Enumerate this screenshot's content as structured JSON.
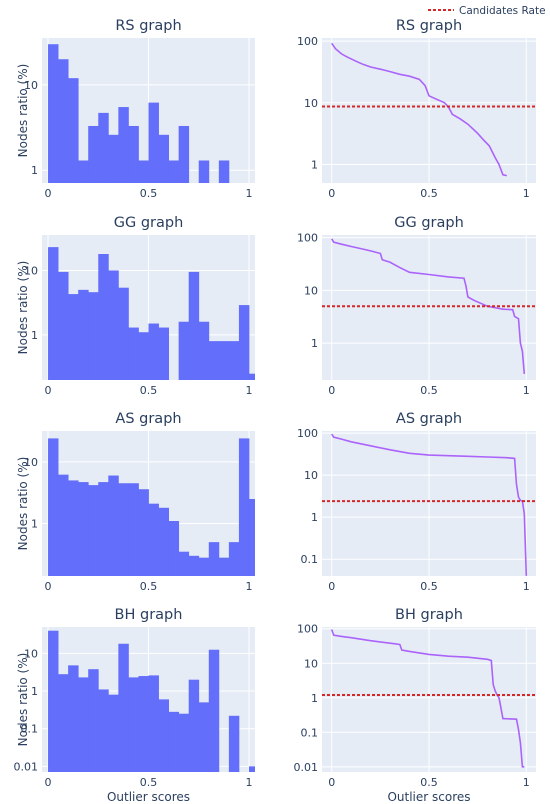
{
  "colors": {
    "plot_bg": "#e5ecf6",
    "grid": "#ffffff",
    "bar": "#636efa",
    "curve": "#ab63fa",
    "rate": "#d62728",
    "text": "#2a3f5f"
  },
  "legend": {
    "label": "Candidates Rate",
    "placement": "top-right"
  },
  "common": {
    "ylabel": "Nodes ratio (%)",
    "xlabel": "Outlier scores"
  },
  "chart_data": [
    {
      "id": "rs-hist",
      "type": "bar",
      "title": "RS graph",
      "ylabel": "Nodes ratio (%)",
      "xlabel": "",
      "xlim": [
        -0.03,
        1.03
      ],
      "y_scale": "log",
      "ylim_log10": [
        -0.15,
        1.55
      ],
      "xticks": [
        {
          "v": 0,
          "t": "0"
        },
        {
          "v": 0.5,
          "t": "0.5"
        },
        {
          "v": 1,
          "t": "1"
        }
      ],
      "yticks": [
        {
          "v": 1,
          "t": "1"
        },
        {
          "v": 10,
          "t": "10"
        }
      ],
      "bin_width": 0.05,
      "bin_starts": [
        0,
        0.05,
        0.1,
        0.15,
        0.2,
        0.25,
        0.3,
        0.35,
        0.4,
        0.45,
        0.5,
        0.55,
        0.6,
        0.65,
        0.7,
        0.75,
        0.8,
        0.85,
        0.9
      ],
      "values": [
        30,
        20,
        12,
        1.3,
        3.3,
        4.7,
        2.6,
        5.5,
        3.3,
        1.3,
        6.2,
        2.6,
        1.3,
        3.3,
        0.7,
        1.3,
        0.7,
        1.3,
        0
      ]
    },
    {
      "id": "rs-curve",
      "type": "line",
      "title": "RS graph",
      "xlabel": "",
      "xlim": [
        -0.05,
        1.05
      ],
      "y_scale": "log",
      "ylim_log10": [
        -0.3,
        2.05
      ],
      "xticks": [
        {
          "v": 0,
          "t": "0"
        },
        {
          "v": 0.5,
          "t": "0.5"
        },
        {
          "v": 1,
          "t": "1"
        }
      ],
      "yticks": [
        {
          "v": 1,
          "t": "1"
        },
        {
          "v": 10,
          "t": "10"
        },
        {
          "v": 100,
          "t": "100"
        }
      ],
      "series": [
        {
          "x": [
            0,
            0.02,
            0.05,
            0.08,
            0.12,
            0.16,
            0.2,
            0.25,
            0.3,
            0.35,
            0.4,
            0.45,
            0.48,
            0.5,
            0.55,
            0.58,
            0.6,
            0.62,
            0.66,
            0.7,
            0.75,
            0.78,
            0.81,
            0.84,
            0.86,
            0.88,
            0.9
          ],
          "y": [
            92,
            75,
            62,
            55,
            48,
            42,
            38,
            35,
            32,
            29,
            27,
            24,
            19,
            13,
            11,
            10,
            8.5,
            6.5,
            5.5,
            4.5,
            3.2,
            2.5,
            2.0,
            1.3,
            1.0,
            0.68,
            0.66
          ]
        }
      ],
      "candidates_rate": 8.7
    },
    {
      "id": "gg-hist",
      "type": "bar",
      "title": "GG graph",
      "ylabel": "Nodes ratio (%)",
      "xlabel": "",
      "xlim": [
        -0.03,
        1.03
      ],
      "y_scale": "log",
      "ylim_log10": [
        -0.7,
        1.55
      ],
      "xticks": [
        {
          "v": 0,
          "t": "0"
        },
        {
          "v": 0.5,
          "t": "0.5"
        },
        {
          "v": 1,
          "t": "1"
        }
      ],
      "yticks": [
        {
          "v": 1,
          "t": "1"
        },
        {
          "v": 10,
          "t": "10"
        }
      ],
      "bin_width": 0.05,
      "bin_starts": [
        0,
        0.05,
        0.1,
        0.15,
        0.2,
        0.25,
        0.3,
        0.35,
        0.4,
        0.45,
        0.5,
        0.55,
        0.6,
        0.65,
        0.7,
        0.75,
        0.8,
        0.85,
        0.9,
        0.95,
        1.0
      ],
      "values": [
        23,
        9.5,
        4.3,
        5.0,
        4.6,
        18,
        10,
        5.4,
        1.3,
        1.1,
        1.5,
        1.3,
        0,
        1.6,
        9.5,
        1.6,
        0.8,
        0.8,
        0.8,
        2.9,
        0.25
      ]
    },
    {
      "id": "gg-curve",
      "type": "line",
      "title": "GG graph",
      "xlabel": "",
      "xlim": [
        -0.05,
        1.05
      ],
      "y_scale": "log",
      "ylim_log10": [
        -0.7,
        2.05
      ],
      "xticks": [
        {
          "v": 0,
          "t": "0"
        },
        {
          "v": 0.5,
          "t": "0.5"
        },
        {
          "v": 1,
          "t": "1"
        }
      ],
      "yticks": [
        {
          "v": 1,
          "t": "1"
        },
        {
          "v": 10,
          "t": "10"
        },
        {
          "v": 100,
          "t": "100"
        }
      ],
      "series": [
        {
          "x": [
            0,
            0.01,
            0.05,
            0.1,
            0.15,
            0.2,
            0.25,
            0.26,
            0.3,
            0.35,
            0.4,
            0.5,
            0.6,
            0.68,
            0.69,
            0.7,
            0.73,
            0.76,
            0.8,
            0.85,
            0.88,
            0.93,
            0.94,
            0.96,
            0.97,
            0.98,
            0.99
          ],
          "y": [
            95,
            82,
            75,
            68,
            62,
            56,
            50,
            38,
            34,
            27,
            22,
            20,
            18,
            17,
            12,
            7.5,
            6.5,
            5.8,
            5.0,
            4.6,
            4.4,
            4.3,
            3.2,
            2.9,
            1.0,
            0.7,
            0.26
          ]
        }
      ],
      "candidates_rate": 5.0
    },
    {
      "id": "as-hist",
      "type": "bar",
      "title": "AS graph",
      "ylabel": "Nodes ratio (%)",
      "xlabel": "",
      "xlim": [
        -0.03,
        1.03
      ],
      "y_scale": "log",
      "ylim_log10": [
        -0.85,
        1.5
      ],
      "xticks": [
        {
          "v": 0,
          "t": "0"
        },
        {
          "v": 0.5,
          "t": "0.5"
        },
        {
          "v": 1,
          "t": "1"
        }
      ],
      "yticks": [
        {
          "v": 1,
          "t": "1"
        },
        {
          "v": 10,
          "t": "10"
        }
      ],
      "bin_width": 0.05,
      "bin_starts": [
        0,
        0.05,
        0.1,
        0.15,
        0.2,
        0.25,
        0.3,
        0.35,
        0.4,
        0.45,
        0.5,
        0.55,
        0.6,
        0.65,
        0.7,
        0.75,
        0.8,
        0.85,
        0.9,
        0.95,
        1.0
      ],
      "values": [
        24,
        6.2,
        5.0,
        4.7,
        4.2,
        4.7,
        6.0,
        4.5,
        4.5,
        3.6,
        2.1,
        1.8,
        1.1,
        0.35,
        0.3,
        0.28,
        0.5,
        0.28,
        0.5,
        24,
        2.5
      ]
    },
    {
      "id": "as-curve",
      "type": "line",
      "title": "AS graph",
      "xlabel": "",
      "xlim": [
        -0.05,
        1.05
      ],
      "y_scale": "log",
      "ylim_log10": [
        -1.4,
        2.05
      ],
      "xticks": [
        {
          "v": 0,
          "t": "0"
        },
        {
          "v": 0.5,
          "t": "0.5"
        },
        {
          "v": 1,
          "t": "1"
        }
      ],
      "yticks": [
        {
          "v": 0.1,
          "t": "0.1"
        },
        {
          "v": 1,
          "t": "1"
        },
        {
          "v": 10,
          "t": "10"
        },
        {
          "v": 100,
          "t": "100"
        }
      ],
      "series": [
        {
          "x": [
            0,
            0.01,
            0.05,
            0.1,
            0.2,
            0.3,
            0.4,
            0.5,
            0.6,
            0.7,
            0.8,
            0.9,
            0.94,
            0.95,
            0.96,
            0.97,
            0.98,
            0.99,
            1.0
          ],
          "y": [
            95,
            80,
            72,
            62,
            50,
            40,
            33,
            30,
            29,
            28,
            27,
            26,
            25,
            6.0,
            3.0,
            2.5,
            2.4,
            1.2,
            0.04
          ]
        }
      ],
      "candidates_rate": 2.4
    },
    {
      "id": "bh-hist",
      "type": "bar",
      "title": "BH graph",
      "ylabel": "Nodes ratio (%)",
      "xlabel": "Outlier scores",
      "xlim": [
        -0.03,
        1.03
      ],
      "y_scale": "log",
      "ylim_log10": [
        -2.15,
        1.7
      ],
      "xticks": [
        {
          "v": 0,
          "t": "0"
        },
        {
          "v": 0.5,
          "t": "0.5"
        },
        {
          "v": 1,
          "t": "1"
        }
      ],
      "yticks": [
        {
          "v": 0.01,
          "t": "0.01"
        },
        {
          "v": 0.1,
          "t": "0.1"
        },
        {
          "v": 1,
          "t": "1"
        },
        {
          "v": 10,
          "t": "10"
        }
      ],
      "bin_width": 0.05,
      "bin_starts": [
        0,
        0.05,
        0.1,
        0.15,
        0.2,
        0.25,
        0.3,
        0.35,
        0.4,
        0.45,
        0.5,
        0.55,
        0.6,
        0.65,
        0.7,
        0.75,
        0.8,
        0.85,
        0.9,
        0.95,
        1.0
      ],
      "values": [
        40,
        2.8,
        4.8,
        2.3,
        3.8,
        1.1,
        0.8,
        18,
        2.3,
        2.5,
        2.6,
        0.6,
        0.28,
        0.25,
        2.0,
        0.5,
        12.5,
        0,
        0.22,
        0.007,
        0.01
      ]
    },
    {
      "id": "bh-curve",
      "type": "line",
      "title": "BH graph",
      "xlabel": "Outlier scores",
      "xlim": [
        -0.05,
        1.05
      ],
      "y_scale": "log",
      "ylim_log10": [
        -2.15,
        2.05
      ],
      "xticks": [
        {
          "v": 0,
          "t": "0"
        },
        {
          "v": 0.5,
          "t": "0.5"
        },
        {
          "v": 1,
          "t": "1"
        }
      ],
      "yticks": [
        {
          "v": 0.01,
          "t": "0.01"
        },
        {
          "v": 0.1,
          "t": "0.1"
        },
        {
          "v": 1,
          "t": "1"
        },
        {
          "v": 10,
          "t": "10"
        },
        {
          "v": 100,
          "t": "100"
        }
      ],
      "series": [
        {
          "x": [
            0,
            0.01,
            0.05,
            0.1,
            0.2,
            0.3,
            0.35,
            0.36,
            0.4,
            0.5,
            0.6,
            0.7,
            0.8,
            0.82,
            0.83,
            0.84,
            0.85,
            0.86,
            0.87,
            0.88,
            0.95,
            0.96,
            0.97,
            0.98,
            0.99
          ],
          "y": [
            95,
            65,
            60,
            55,
            45,
            38,
            35,
            24,
            22,
            18,
            16,
            15,
            13,
            12,
            2.4,
            1.6,
            1.2,
            1.0,
            0.5,
            0.25,
            0.24,
            0.12,
            0.05,
            0.01,
            0.01
          ]
        }
      ],
      "candidates_rate": 1.2
    }
  ]
}
